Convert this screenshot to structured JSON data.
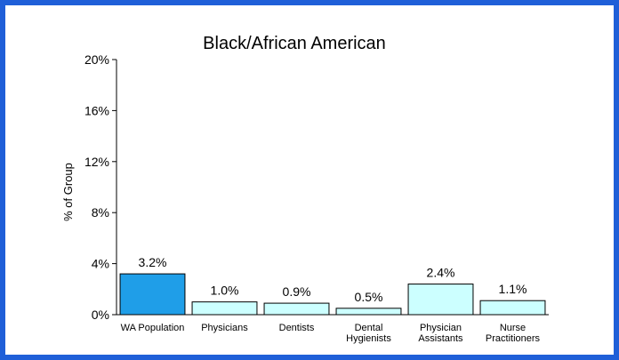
{
  "colors": {
    "frame_border": "#1f5fd8",
    "highlight_bar": "#1f9ee8",
    "bar": "#ccffff",
    "bar_outline": "#000000"
  },
  "chart_data": {
    "type": "bar",
    "title": "Black/African American",
    "xlabel": "",
    "ylabel": "% of Group",
    "ylim": [
      0,
      20
    ],
    "yticks": [
      0,
      4,
      8,
      12,
      16,
      20
    ],
    "ytick_labels": [
      "0%",
      "4%",
      "8%",
      "12%",
      "16%",
      "20%"
    ],
    "grid": false,
    "legend": "none",
    "categories": [
      [
        "WA Population"
      ],
      [
        "Physicians"
      ],
      [
        "Dentists"
      ],
      [
        "Dental",
        "Hygienists"
      ],
      [
        "Physician",
        "Assistants"
      ],
      [
        "Nurse",
        "Practitioners"
      ]
    ],
    "values": [
      3.2,
      1.0,
      0.9,
      0.5,
      2.4,
      1.1
    ],
    "value_labels": [
      "3.2%",
      "1.0%",
      "0.9%",
      "0.5%",
      "2.4%",
      "1.1%"
    ],
    "highlight_index": 0
  }
}
